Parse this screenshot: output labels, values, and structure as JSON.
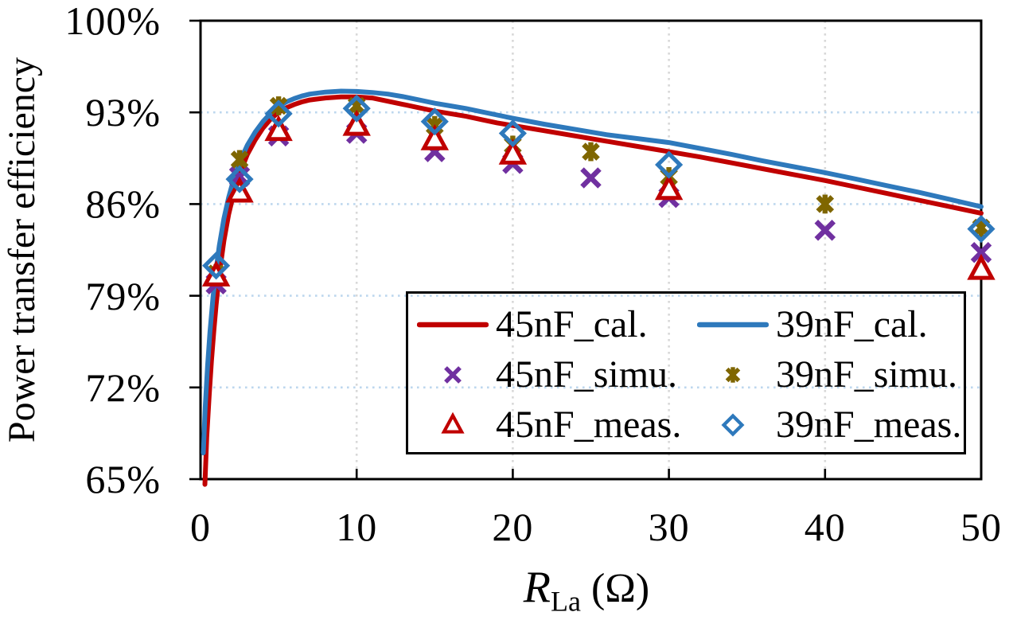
{
  "figure": {
    "y_axis": {
      "title": "Power transfer efficiency",
      "ticks": [
        "100%",
        "93%",
        "86%",
        "79%",
        "72%",
        "65%"
      ],
      "values": [
        100,
        93,
        86,
        79,
        72,
        65
      ]
    },
    "x_axis": {
      "title_main": "R",
      "title_sub": "La",
      "title_unit": " (Ω)",
      "ticks": [
        "0",
        "10",
        "20",
        "30",
        "40",
        "50"
      ],
      "values": [
        0,
        10,
        20,
        30,
        40,
        50
      ]
    }
  },
  "colors": {
    "red_45nF": "#C00000",
    "blue_39nF": "#2E79BC",
    "purple_simu_45nF": "#7030A0",
    "olive_simu_39nF": "#7F6600",
    "grid_horizontal": "#BDD7EE",
    "grid_vertical": "#D8D8D8",
    "axis": "#000000"
  },
  "legend": {
    "items": [
      {
        "label": "45nF_cal.",
        "marker": "line",
        "color": "#C00000"
      },
      {
        "label": "39nF_cal.",
        "marker": "line",
        "color": "#2E79BC"
      },
      {
        "label": "45nF_simu.",
        "marker": "x",
        "color": "#7030A0"
      },
      {
        "label": "39nF_simu.",
        "marker": "asterisk",
        "color": "#7F6600"
      },
      {
        "label": "45nF_meas.",
        "marker": "triangle",
        "color": "#C00000"
      },
      {
        "label": "39nF_meas.",
        "marker": "diamond",
        "color": "#2E79BC"
      }
    ]
  },
  "chart_data": {
    "type": "line",
    "title": "",
    "xlabel": "R_La (Ω)",
    "ylabel": "Power transfer efficiency",
    "xlim": [
      0,
      50
    ],
    "ylim": [
      65,
      100
    ],
    "x_ticks": [
      0,
      10,
      20,
      30,
      40,
      50
    ],
    "y_ticks": [
      65,
      72,
      79,
      86,
      93,
      100
    ],
    "grid": "dotted",
    "legend_position": "lower right inside",
    "series": [
      {
        "name": "45nF_cal.",
        "type": "line",
        "color": "#C00000",
        "points": [
          [
            0.28,
            64.6
          ],
          [
            0.4,
            68.2
          ],
          [
            0.55,
            71.3
          ],
          [
            0.7,
            74.0
          ],
          [
            0.85,
            76.3
          ],
          [
            1,
            78.3
          ],
          [
            1.2,
            80.6
          ],
          [
            1.5,
            83.2
          ],
          [
            1.8,
            85.2
          ],
          [
            2.1,
            86.7
          ],
          [
            2.5,
            88.3
          ],
          [
            3,
            89.8
          ],
          [
            3.5,
            90.9
          ],
          [
            4,
            91.8
          ],
          [
            4.5,
            92.5
          ],
          [
            5,
            93.0
          ],
          [
            5.5,
            93.35
          ],
          [
            6,
            93.6
          ],
          [
            6.5,
            93.8
          ],
          [
            7,
            93.95
          ],
          [
            8,
            94.1
          ],
          [
            9,
            94.18
          ],
          [
            10,
            94.18
          ],
          [
            11,
            94.1
          ],
          [
            12,
            93.85
          ],
          [
            13,
            93.6
          ],
          [
            14,
            93.35
          ],
          [
            15,
            93.1
          ],
          [
            16,
            92.9
          ],
          [
            17,
            92.7
          ],
          [
            18,
            92.45
          ],
          [
            19,
            92.2
          ],
          [
            20,
            92.0
          ],
          [
            22,
            91.6
          ],
          [
            24,
            91.2
          ],
          [
            26,
            90.8
          ],
          [
            28,
            90.4
          ],
          [
            30,
            90.0
          ],
          [
            32,
            89.6
          ],
          [
            34,
            89.15
          ],
          [
            36,
            88.7
          ],
          [
            38,
            88.25
          ],
          [
            40,
            87.8
          ],
          [
            42,
            87.3
          ],
          [
            44,
            86.8
          ],
          [
            46,
            86.3
          ],
          [
            48,
            85.8
          ],
          [
            50,
            85.3
          ]
        ]
      },
      {
        "name": "39nF_cal.",
        "type": "line",
        "color": "#2E79BC",
        "points": [
          [
            0.18,
            67.0
          ],
          [
            0.3,
            70.5
          ],
          [
            0.45,
            73.6
          ],
          [
            0.6,
            76.2
          ],
          [
            0.8,
            78.9
          ],
          [
            1,
            81.0
          ],
          [
            1.2,
            82.8
          ],
          [
            1.5,
            84.9
          ],
          [
            1.8,
            86.5
          ],
          [
            2.1,
            87.8
          ],
          [
            2.5,
            89.2
          ],
          [
            3,
            90.5
          ],
          [
            3.5,
            91.5
          ],
          [
            4,
            92.3
          ],
          [
            4.5,
            92.95
          ],
          [
            5,
            93.45
          ],
          [
            5.5,
            93.8
          ],
          [
            6,
            94.05
          ],
          [
            6.5,
            94.25
          ],
          [
            7,
            94.4
          ],
          [
            8,
            94.55
          ],
          [
            9,
            94.62
          ],
          [
            10,
            94.6
          ],
          [
            11,
            94.52
          ],
          [
            12,
            94.4
          ],
          [
            13,
            94.2
          ],
          [
            14,
            93.95
          ],
          [
            15,
            93.7
          ],
          [
            16,
            93.5
          ],
          [
            17,
            93.3
          ],
          [
            18,
            93.05
          ],
          [
            19,
            92.8
          ],
          [
            20,
            92.55
          ],
          [
            22,
            92.1
          ],
          [
            24,
            91.7
          ],
          [
            26,
            91.3
          ],
          [
            28,
            91.0
          ],
          [
            30,
            90.7
          ],
          [
            32,
            90.25
          ],
          [
            34,
            89.8
          ],
          [
            36,
            89.3
          ],
          [
            38,
            88.85
          ],
          [
            40,
            88.4
          ],
          [
            42,
            87.9
          ],
          [
            44,
            87.4
          ],
          [
            46,
            86.9
          ],
          [
            48,
            86.35
          ],
          [
            50,
            85.8
          ]
        ]
      },
      {
        "name": "45nF_simu.",
        "type": "scatter",
        "marker": "x",
        "color": "#7030A0",
        "points": [
          [
            1,
            79.9
          ],
          [
            2.5,
            88.1
          ],
          [
            5,
            91.2
          ],
          [
            10,
            91.4
          ],
          [
            15,
            90.0
          ],
          [
            20,
            89.1
          ],
          [
            25,
            88.0
          ],
          [
            30,
            86.5
          ],
          [
            40,
            84.0
          ],
          [
            50,
            82.3
          ]
        ]
      },
      {
        "name": "39nF_simu.",
        "type": "scatter",
        "marker": "asterisk",
        "color": "#7F6600",
        "points": [
          [
            1,
            80.7
          ],
          [
            2.5,
            89.4
          ],
          [
            5,
            93.5
          ],
          [
            10,
            93.5
          ],
          [
            15,
            92.0
          ],
          [
            20,
            90.5
          ],
          [
            25,
            90.0
          ],
          [
            30,
            88.1
          ],
          [
            40,
            86.0
          ],
          [
            50,
            84.2
          ]
        ]
      },
      {
        "name": "45nF_meas.",
        "type": "scatter",
        "marker": "triangle",
        "color": "#C00000",
        "points": [
          [
            1,
            80.5
          ],
          [
            2.5,
            86.9
          ],
          [
            5,
            91.6
          ],
          [
            10,
            92.0
          ],
          [
            15,
            90.9
          ],
          [
            20,
            89.8
          ],
          [
            30,
            87.1
          ],
          [
            50,
            81.0
          ]
        ]
      },
      {
        "name": "39nF_meas.",
        "type": "scatter",
        "marker": "diamond",
        "color": "#2E79BC",
        "points": [
          [
            1,
            81.3
          ],
          [
            2.5,
            87.9
          ],
          [
            5,
            92.9
          ],
          [
            10,
            93.3
          ],
          [
            15,
            92.3
          ],
          [
            20,
            91.4
          ],
          [
            30,
            89.0
          ],
          [
            50,
            84.1
          ]
        ]
      }
    ]
  }
}
